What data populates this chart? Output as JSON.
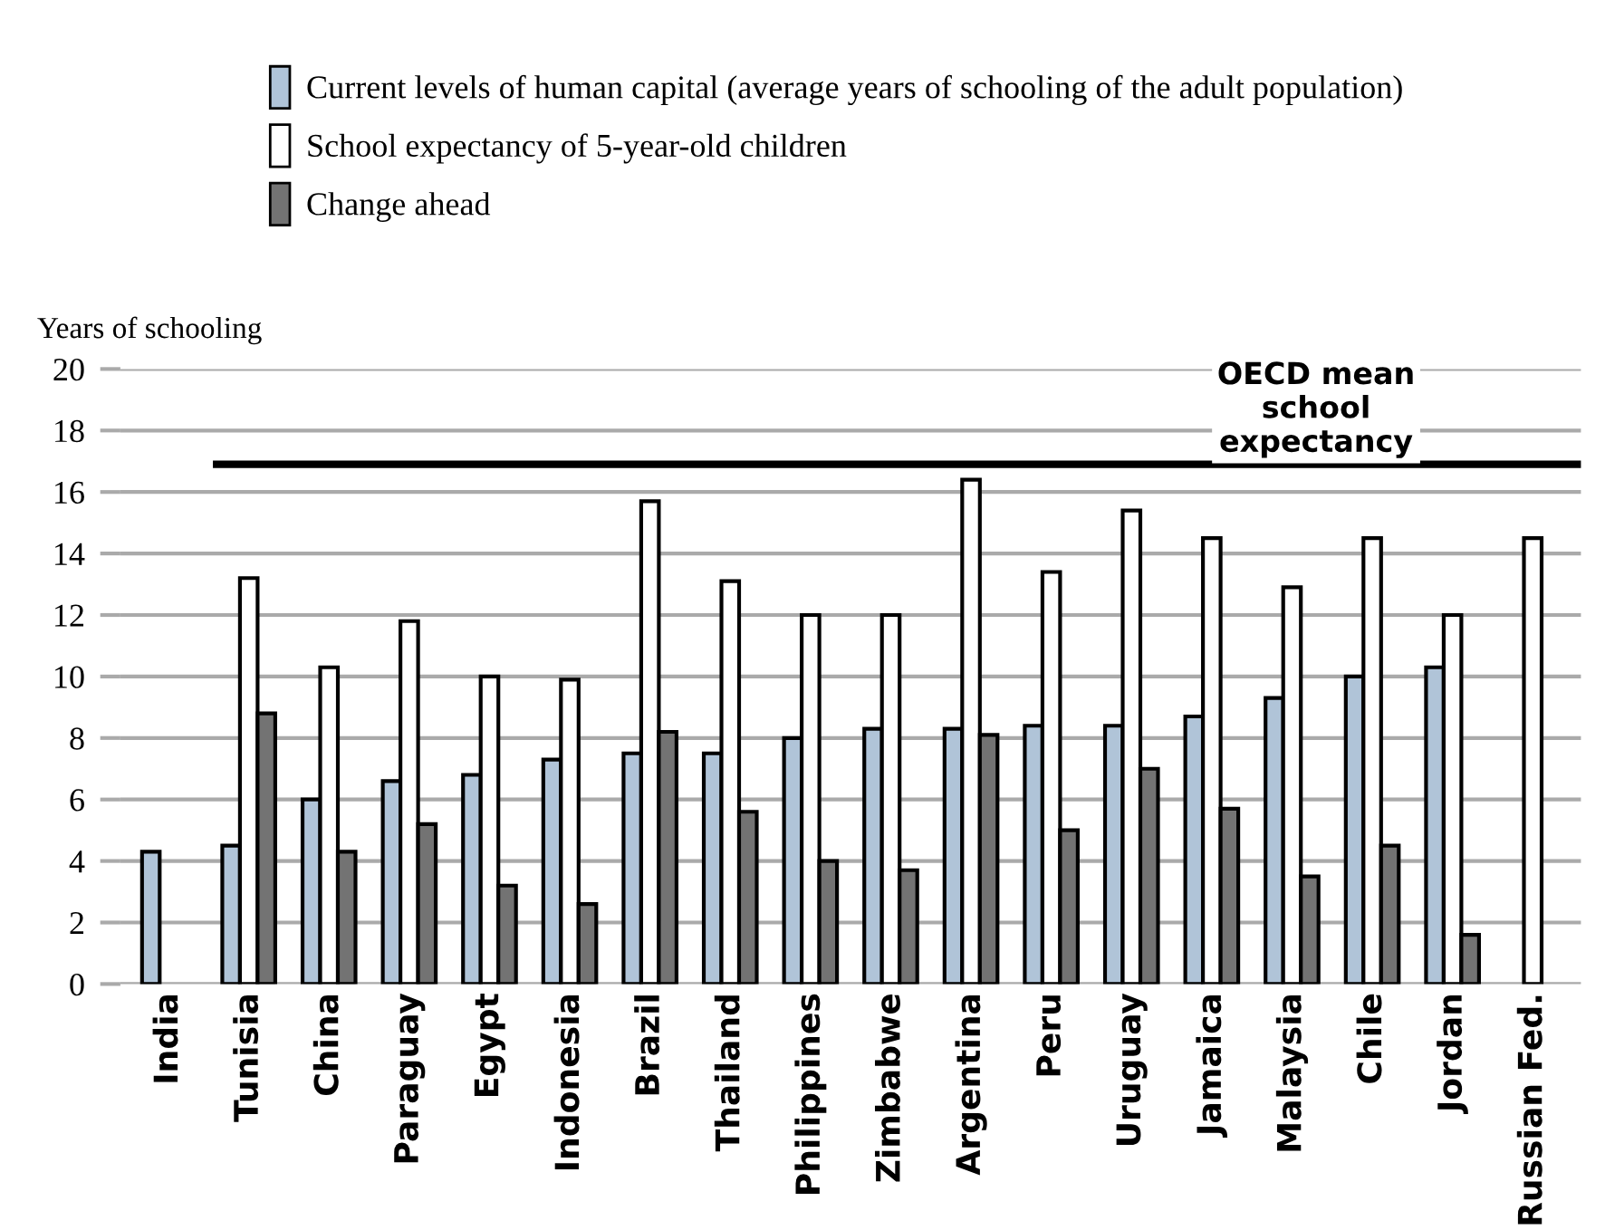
{
  "chart_data": {
    "type": "bar",
    "ylabel": "Years of schooling",
    "categories": [
      "India",
      "Tunisia",
      "China",
      "Paraguay",
      "Egypt",
      "Indonesia",
      "Brazil",
      "Thailand",
      "Philippines",
      "Zimbabwe",
      "Argentina",
      "Peru",
      "Uruguay",
      "Jamaica",
      "Malaysia",
      "Chile",
      "Jordan",
      "Russian Fed."
    ],
    "series": [
      {
        "name": "Current levels of human capital (average years of schooling of the adult population)",
        "color": "#b0c4d8",
        "values": [
          4.3,
          4.5,
          6.0,
          6.6,
          6.8,
          7.3,
          7.5,
          7.5,
          8.0,
          8.3,
          8.3,
          8.4,
          8.4,
          8.7,
          9.3,
          10.0,
          10.3,
          null
        ]
      },
      {
        "name": "School expectancy of 5-year-old children",
        "color": "#ffffff",
        "values": [
          null,
          13.2,
          10.3,
          11.8,
          10.0,
          9.9,
          15.7,
          13.1,
          12.0,
          12.0,
          16.4,
          13.4,
          15.4,
          14.5,
          12.9,
          14.5,
          12.0,
          14.5
        ]
      },
      {
        "name": "Change ahead",
        "color": "#737373",
        "values": [
          null,
          8.8,
          4.3,
          5.2,
          3.2,
          2.6,
          8.2,
          5.6,
          4.0,
          3.7,
          8.1,
          5.0,
          7.0,
          5.7,
          3.5,
          4.5,
          1.6,
          null
        ]
      }
    ],
    "ylim": [
      0,
      20
    ],
    "yticks": [
      0,
      2,
      4,
      6,
      8,
      10,
      12,
      14,
      16,
      18,
      20
    ],
    "ref_lines": [
      {
        "axis": "y",
        "value": 16.9,
        "label": "OECD mean\nschool\nexpectancy",
        "color": "#000000"
      }
    ],
    "grid": "y",
    "legend": "top"
  }
}
